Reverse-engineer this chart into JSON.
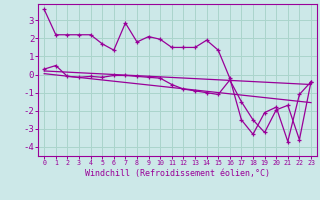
{
  "xlabel": "Windchill (Refroidissement éolien,°C)",
  "background_color": "#cce8e8",
  "line_color": "#990099",
  "grid_color": "#aad4cc",
  "xlim": [
    -0.5,
    23.5
  ],
  "ylim": [
    -4.5,
    3.9
  ],
  "yticks": [
    -4,
    -3,
    -2,
    -1,
    0,
    1,
    2,
    3
  ],
  "xticks": [
    0,
    1,
    2,
    3,
    4,
    5,
    6,
    7,
    8,
    9,
    10,
    11,
    12,
    13,
    14,
    15,
    16,
    17,
    18,
    19,
    20,
    21,
    22,
    23
  ],
  "xtick_labels": [
    "0",
    "1",
    "2",
    "3",
    "4",
    "5",
    "6",
    "7",
    "8",
    "9",
    "10",
    "11",
    "12",
    "13",
    "14",
    "15",
    "16",
    "17",
    "18",
    "19",
    "20",
    "21",
    "22",
    "23"
  ],
  "series1_x": [
    0,
    1,
    2,
    3,
    4,
    5,
    6,
    7,
    8,
    9,
    10,
    11,
    12,
    13,
    14,
    15,
    16,
    17,
    18,
    19,
    20,
    21,
    22,
    23
  ],
  "series1_y": [
    3.6,
    2.2,
    2.2,
    2.2,
    2.2,
    1.7,
    1.35,
    2.85,
    1.8,
    2.1,
    1.95,
    1.5,
    1.5,
    1.5,
    1.9,
    1.35,
    -0.2,
    -2.5,
    -3.3,
    -2.1,
    -1.8,
    -3.7,
    -1.1,
    -0.4
  ],
  "series2_x": [
    0,
    1,
    2,
    3,
    4,
    5,
    6,
    7,
    8,
    9,
    10,
    11,
    12,
    13,
    14,
    15,
    16,
    17,
    18,
    19,
    20,
    21,
    22,
    23
  ],
  "series2_y": [
    0.3,
    0.5,
    -0.1,
    -0.15,
    -0.1,
    -0.15,
    -0.05,
    -0.05,
    -0.1,
    -0.15,
    -0.2,
    -0.55,
    -0.8,
    -0.9,
    -1.0,
    -1.1,
    -0.3,
    -1.5,
    -2.5,
    -3.2,
    -1.95,
    -1.7,
    -3.6,
    -0.4
  ],
  "trend1_x": [
    0,
    23
  ],
  "trend1_y": [
    0.2,
    -0.55
  ],
  "trend2_x": [
    0,
    23
  ],
  "trend2_y": [
    0.05,
    -1.55
  ]
}
